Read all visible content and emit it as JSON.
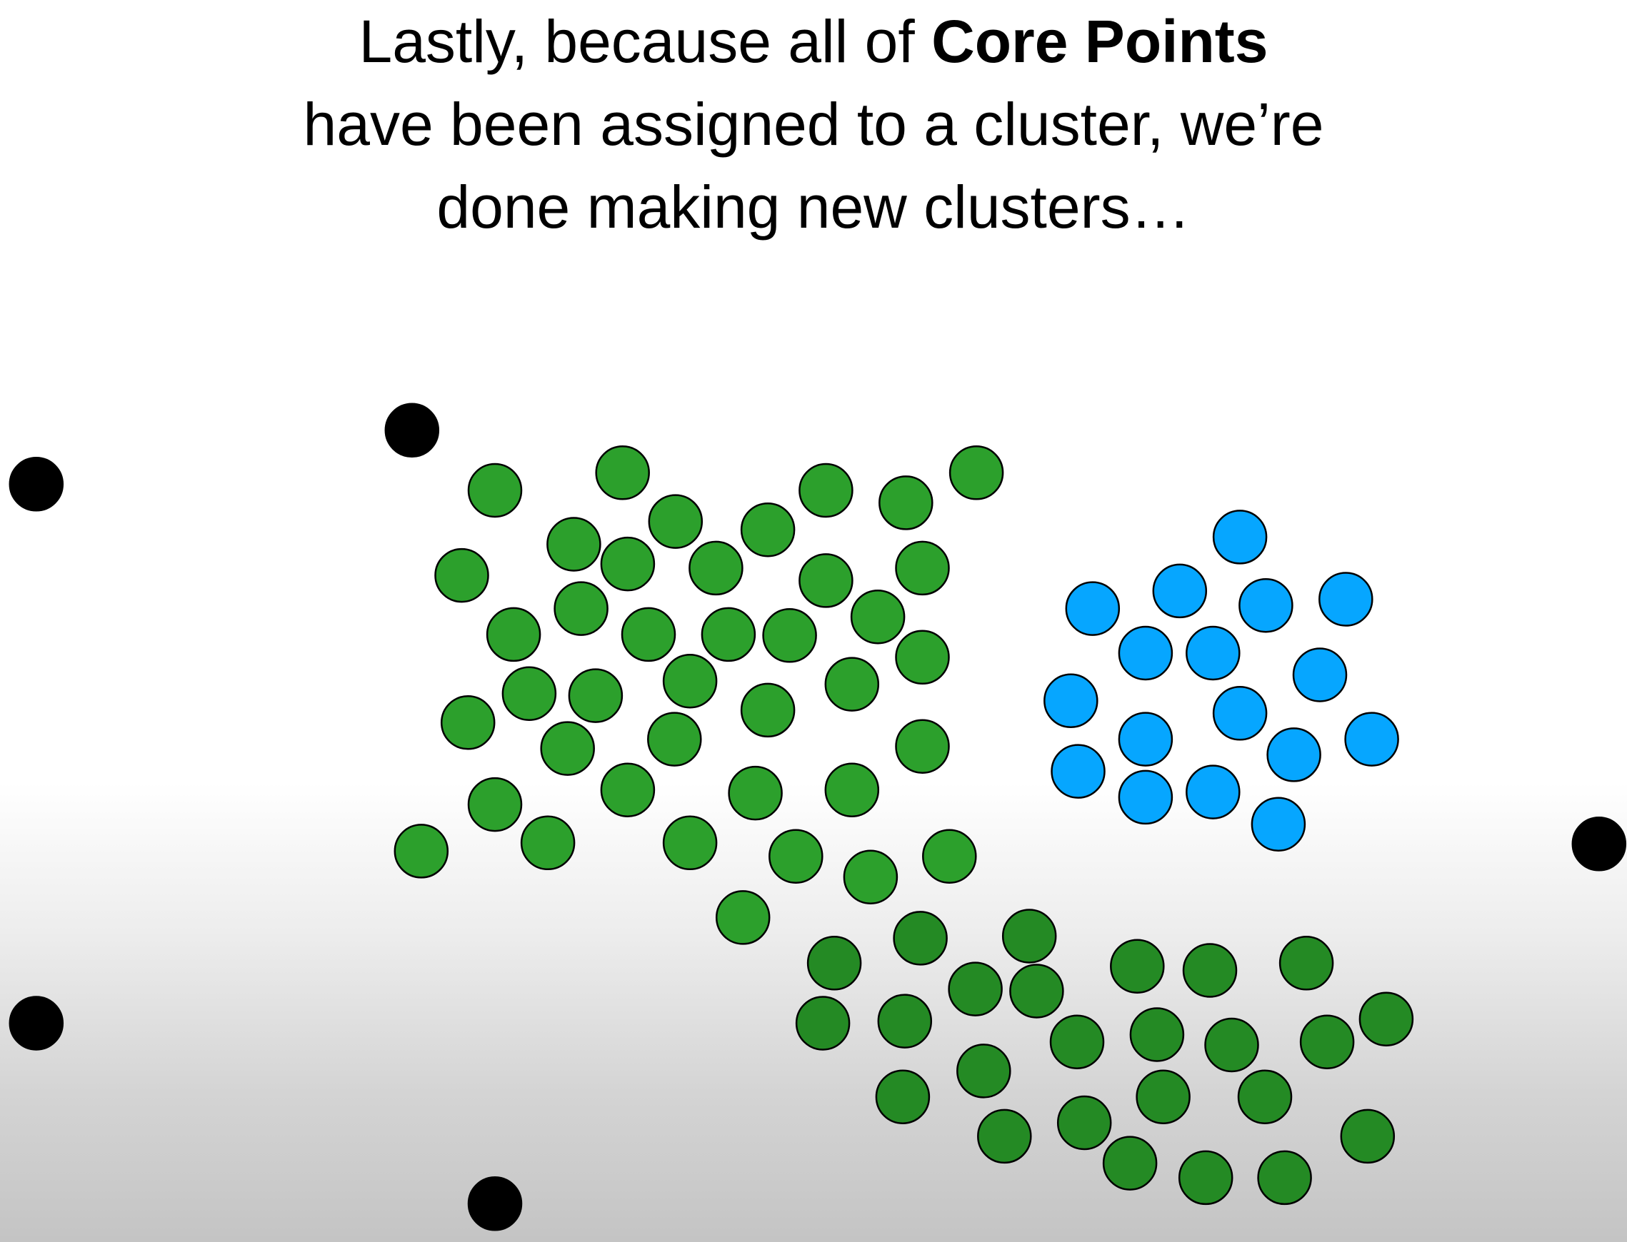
{
  "caption": {
    "line1_prefix": "Lastly, because all of ",
    "line1_bold": "Core Points",
    "line2": "have been assigned to a cluster, we’re",
    "line3": "done making new clusters…"
  },
  "colors": {
    "cluster_green": "#2ca02c",
    "cluster_green_dark": "#248a24",
    "cluster_blue": "#06a6ff",
    "outlier": "#000000",
    "outline": "#000000"
  },
  "chart_data": {
    "type": "scatter",
    "title": "",
    "xlabel": "",
    "ylabel": "",
    "xlim": [
      0,
      1568
    ],
    "ylim": [
      0,
      1198
    ],
    "grid": false,
    "legend": "none",
    "series": [
      {
        "color": "#2ca02c",
        "points": [
          [
            477,
            473
          ],
          [
            600,
            456
          ],
          [
            796,
            473
          ],
          [
            873,
            485
          ],
          [
            941,
            456
          ],
          [
            651,
            503
          ],
          [
            740,
            511
          ],
          [
            553,
            525
          ],
          [
            605,
            544
          ],
          [
            690,
            548
          ],
          [
            445,
            555
          ],
          [
            889,
            548
          ],
          [
            796,
            560
          ],
          [
            560,
            587
          ],
          [
            495,
            612
          ],
          [
            625,
            612
          ],
          [
            702,
            612
          ],
          [
            761,
            613
          ],
          [
            846,
            595
          ],
          [
            889,
            634
          ],
          [
            665,
            657
          ],
          [
            510,
            669
          ],
          [
            574,
            671
          ],
          [
            821,
            660
          ],
          [
            451,
            697
          ],
          [
            740,
            685
          ],
          [
            547,
            722
          ],
          [
            650,
            713
          ],
          [
            889,
            720
          ],
          [
            605,
            762
          ],
          [
            728,
            765
          ],
          [
            821,
            762
          ],
          [
            477,
            776
          ],
          [
            406,
            821
          ],
          [
            528,
            813
          ],
          [
            665,
            813
          ],
          [
            767,
            826
          ],
          [
            839,
            846
          ],
          [
            915,
            826
          ],
          [
            716,
            885
          ]
        ]
      },
      {
        "color": "#248a24",
        "points": [
          [
            887,
            905
          ],
          [
            992,
            903
          ],
          [
            804,
            929
          ],
          [
            940,
            954
          ],
          [
            999,
            956
          ],
          [
            1096,
            932
          ],
          [
            1166,
            936
          ],
          [
            1259,
            929
          ],
          [
            793,
            987
          ],
          [
            872,
            985
          ],
          [
            1038,
            1005
          ],
          [
            1115,
            998
          ],
          [
            1187,
            1008
          ],
          [
            1279,
            1005
          ],
          [
            1336,
            983
          ],
          [
            948,
            1033
          ],
          [
            870,
            1058
          ],
          [
            1121,
            1058
          ],
          [
            1219,
            1058
          ],
          [
            968,
            1096
          ],
          [
            1045,
            1083
          ],
          [
            1089,
            1122
          ],
          [
            1162,
            1136
          ],
          [
            1238,
            1136
          ],
          [
            1318,
            1096
          ]
        ]
      },
      {
        "color": "#06a6ff",
        "points": [
          [
            1195,
            518
          ],
          [
            1137,
            570
          ],
          [
            1053,
            587
          ],
          [
            1220,
            584
          ],
          [
            1297,
            578
          ],
          [
            1104,
            630
          ],
          [
            1169,
            630
          ],
          [
            1272,
            651
          ],
          [
            1032,
            676
          ],
          [
            1195,
            688
          ],
          [
            1104,
            713
          ],
          [
            1247,
            728
          ],
          [
            1322,
            713
          ],
          [
            1039,
            744
          ],
          [
            1104,
            769
          ],
          [
            1169,
            764
          ],
          [
            1232,
            795
          ]
        ]
      },
      {
        "color": "#000000",
        "points": [
          [
            397,
            415
          ],
          [
            35,
            467
          ],
          [
            1541,
            814
          ],
          [
            35,
            987
          ],
          [
            477,
            1161
          ]
        ]
      }
    ]
  }
}
